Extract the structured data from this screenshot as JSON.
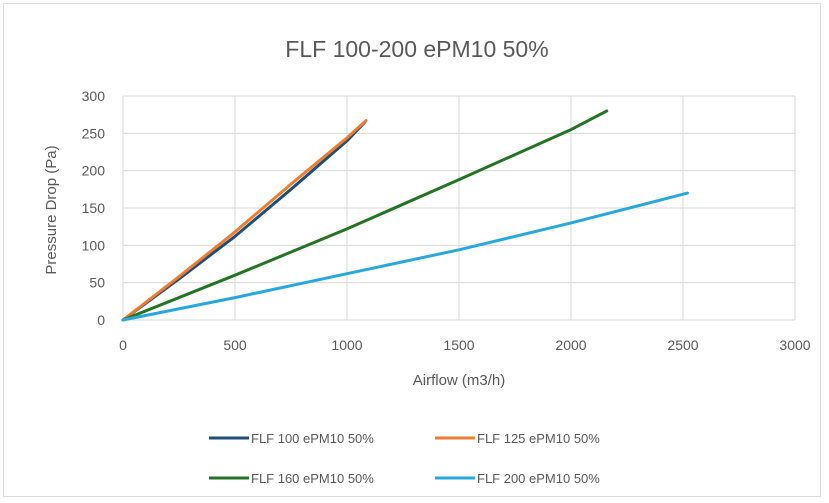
{
  "chart_data": {
    "type": "line",
    "title": "FLF 100-200 ePM10 50%",
    "xlabel": "Airflow (m3/h)",
    "ylabel": "Pressure Drop (Pa)",
    "xlim": [
      0,
      3000
    ],
    "ylim": [
      0,
      300
    ],
    "x_ticks": [
      "0",
      "500",
      "1000",
      "1500",
      "2000",
      "2500",
      "3000"
    ],
    "y_ticks": [
      "0",
      "50",
      "100",
      "150",
      "200",
      "250",
      "300"
    ],
    "grid": true,
    "legend_position": "bottom",
    "series": [
      {
        "name": "FLF 100 ePM10 50%",
        "color": "#1f4e79",
        "x": [
          0,
          250,
          500,
          750,
          1000,
          1080
        ],
        "y": [
          0,
          55,
          112,
          175,
          240,
          265
        ]
      },
      {
        "name": "FLF 125 ePM10 50%",
        "color": "#ed7d31",
        "x": [
          0,
          250,
          500,
          750,
          1000,
          1085
        ],
        "y": [
          0,
          58,
          118,
          182,
          244,
          267
        ]
      },
      {
        "name": "FLF 160 ePM10 50%",
        "color": "#267326",
        "x": [
          0,
          500,
          1000,
          1500,
          2000,
          2160
        ],
        "y": [
          0,
          60,
          122,
          188,
          255,
          280
        ]
      },
      {
        "name": "FLF 200 ePM10 50%",
        "color": "#29a8e0",
        "x": [
          0,
          500,
          1000,
          1500,
          2000,
          2520
        ],
        "y": [
          0,
          30,
          62,
          94,
          130,
          170
        ]
      }
    ]
  }
}
